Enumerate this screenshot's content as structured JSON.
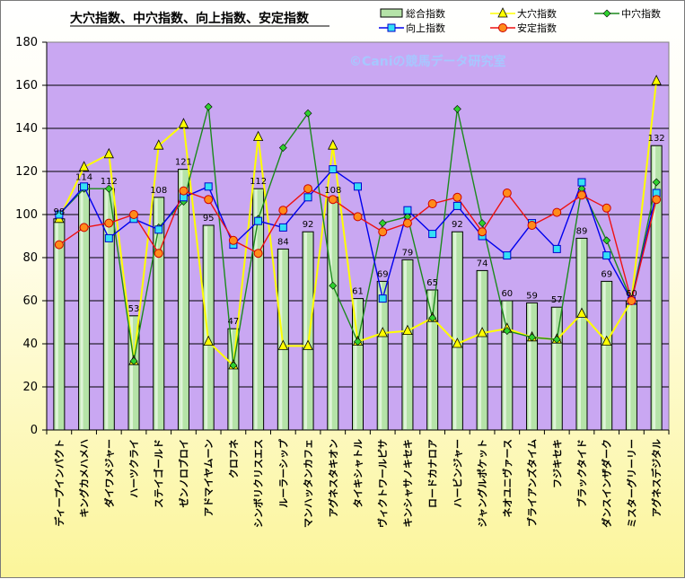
{
  "chart_data": {
    "type": "bar",
    "title": "大穴指数、中穴指数、向上指数、安定指数",
    "watermark": "©Caniの競馬データ研究室",
    "ylim": [
      0,
      180
    ],
    "yticks": [
      0,
      20,
      40,
      60,
      80,
      100,
      120,
      140,
      160,
      180
    ],
    "grid": true,
    "legend_position": "top-right",
    "plot_background": "#c9a7f2",
    "categories": [
      "ディープインパクト",
      "キングカメハメハ",
      "ダイワメジャー",
      "ハーツクライ",
      "ステイゴールド",
      "ゼンノロブロイ",
      "アドマイヤムーン",
      "クロフネ",
      "シンボリクリスエス",
      "ルーラーシップ",
      "マンハッタンカフェ",
      "アグネスタキオン",
      "タイキシャトル",
      "ヴィクトワールピサ",
      "キンシャサノキセキ",
      "ロードカナロア",
      "ハービンジャー",
      "ジャングルポケット",
      "ネオユニヴァース",
      "ブライアンズタイム",
      "フジキセキ",
      "ブラックタイド",
      "ダンスインザダーク",
      "ミスターグリーリー",
      "アグネスデジタル"
    ],
    "series": [
      {
        "name": "総合指数",
        "type": "bar",
        "color": "#b5e3a8",
        "values": [
          98,
          114,
          112,
          53,
          108,
          121,
          95,
          47,
          112,
          84,
          92,
          108,
          61,
          69,
          79,
          65,
          92,
          74,
          60,
          59,
          57,
          89,
          69,
          60,
          132
        ]
      },
      {
        "name": "大穴指数",
        "type": "line",
        "color": "#ffff00",
        "marker": "triangle",
        "values": [
          98,
          122,
          128,
          32,
          132,
          142,
          41,
          30,
          136,
          39,
          39,
          132,
          41,
          45,
          46,
          52,
          40,
          45,
          47,
          43,
          42,
          54,
          41,
          60,
          162
        ]
      },
      {
        "name": "中穴指数",
        "type": "line",
        "color": "#1c8a1c",
        "marker": "diamond",
        "values": [
          100,
          112,
          112,
          32,
          94,
          106,
          150,
          30,
          98,
          131,
          147,
          67,
          41,
          96,
          99,
          52,
          149,
          96,
          46,
          43,
          42,
          112,
          88,
          60,
          115
        ]
      },
      {
        "name": "向上指数",
        "type": "line",
        "color": "#0000ee",
        "marker": "square",
        "values": [
          100,
          113,
          89,
          98,
          93,
          108,
          113,
          86,
          97,
          94,
          108,
          121,
          113,
          61,
          102,
          91,
          104,
          90,
          81,
          96,
          84,
          115,
          81,
          60,
          110
        ]
      },
      {
        "name": "安定指数",
        "type": "line",
        "color": "#ee1111",
        "marker": "circle",
        "values": [
          86,
          94,
          96,
          100,
          82,
          111,
          107,
          88,
          82,
          102,
          112,
          107,
          99,
          92,
          96,
          105,
          108,
          92,
          110,
          95,
          101,
          109,
          103,
          60,
          107
        ]
      }
    ]
  }
}
